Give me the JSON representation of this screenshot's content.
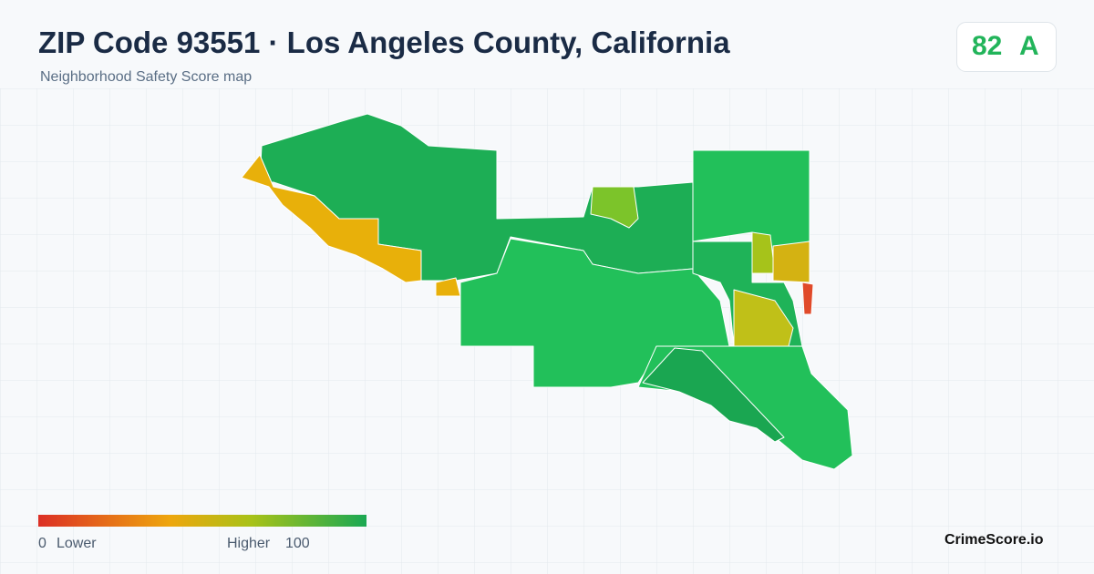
{
  "header": {
    "title": "ZIP Code 93551 · Los Angeles County, California",
    "subtitle": "Neighborhood Safety Score map"
  },
  "score": {
    "value": 82,
    "grade": "A"
  },
  "legend": {
    "min": 0,
    "min_label": "Lower",
    "max_label": "Higher",
    "max": 100
  },
  "brand": "CrimeScore.io"
}
